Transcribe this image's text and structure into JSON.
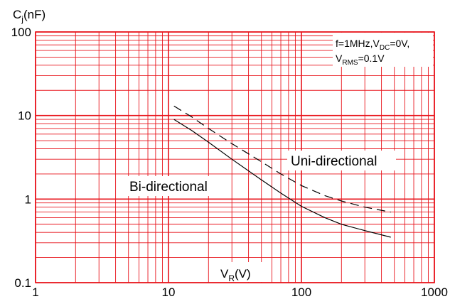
{
  "chart_data": {
    "type": "line",
    "xscale": "log",
    "yscale": "log",
    "xlim": [
      1,
      1000
    ],
    "ylim": [
      0.1,
      100
    ],
    "grid": true,
    "x_ticks": [
      {
        "value": 1,
        "label": "1"
      },
      {
        "value": 10,
        "label": "10"
      },
      {
        "value": 100,
        "label": "100"
      },
      {
        "value": 1000,
        "label": "1000"
      }
    ],
    "y_ticks": [
      {
        "value": 0.1,
        "label": "0.1"
      },
      {
        "value": 1,
        "label": "1"
      },
      {
        "value": 10,
        "label": "10"
      },
      {
        "value": 100,
        "label": "100"
      }
    ],
    "ylabel": {
      "main": "C",
      "sub": "j",
      "rest": "(nF)"
    },
    "xlabel": {
      "main": "V",
      "sub": "R",
      "rest": "(V)"
    },
    "conditions": {
      "line1": {
        "a": "f=1MHz,V",
        "a_sub": "DC",
        "b": "=0V,"
      },
      "line2": {
        "a": "V",
        "a_sub": "RMS",
        "b": "=0.1V"
      }
    },
    "series": [
      {
        "name": "Uni-directional",
        "style": "dashed",
        "x": [
          11,
          15,
          20,
          30,
          50,
          70,
          100,
          150,
          200,
          300,
          470
        ],
        "y": [
          13,
          9.6,
          7.0,
          4.6,
          2.8,
          2.0,
          1.45,
          1.1,
          0.95,
          0.8,
          0.7
        ]
      },
      {
        "name": "Bi-directional",
        "style": "solid",
        "x": [
          11,
          15,
          20,
          30,
          50,
          70,
          100,
          150,
          200,
          300,
          470
        ],
        "y": [
          9.0,
          6.6,
          4.8,
          3.0,
          1.7,
          1.18,
          0.82,
          0.6,
          0.5,
          0.42,
          0.35
        ]
      }
    ],
    "colors": {
      "grid": "#e8141c",
      "curves": "#000000",
      "frame": "#e8141c"
    }
  }
}
